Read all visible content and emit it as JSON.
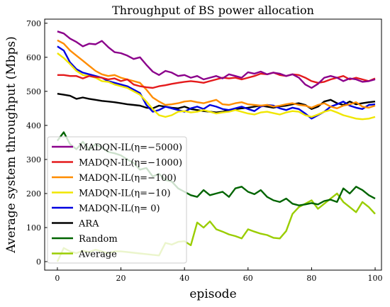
{
  "chart_data": {
    "type": "line",
    "title": "Throughput of BS power allocation",
    "xlabel": "episode",
    "ylabel": "Average system throughput (Mbps)",
    "xlim": [
      -4,
      102
    ],
    "ylim": [
      -25,
      712
    ],
    "xticks": [
      0,
      20,
      40,
      60,
      80,
      100
    ],
    "yticks": [
      0,
      100,
      200,
      300,
      400,
      500,
      600,
      700
    ],
    "grid": false,
    "legend_position": "lower-left",
    "series": [
      {
        "name": "MADQN-IL(η=−5000)",
        "color": "#8b008b",
        "x": [
          0,
          2,
          4,
          6,
          8,
          10,
          12,
          14,
          16,
          18,
          20,
          22,
          24,
          26,
          28,
          30,
          32,
          34,
          36,
          38,
          40,
          42,
          44,
          46,
          48,
          50,
          52,
          54,
          56,
          58,
          60,
          62,
          64,
          66,
          68,
          70,
          72,
          74,
          76,
          78,
          80,
          82,
          84,
          86,
          88,
          90,
          92,
          94,
          96,
          98,
          100
        ],
        "y": [
          676,
          670,
          655,
          645,
          632,
          640,
          638,
          648,
          630,
          615,
          612,
          605,
          595,
          600,
          578,
          558,
          548,
          560,
          555,
          545,
          548,
          540,
          545,
          535,
          540,
          545,
          538,
          550,
          545,
          540,
          556,
          552,
          558,
          550,
          555,
          552,
          545,
          550,
          540,
          520,
          510,
          522,
          540,
          545,
          540,
          530,
          538,
          535,
          528,
          530,
          535
        ]
      },
      {
        "name": "MADQN-IL(η=−1000)",
        "color": "#e41a1c",
        "x": [
          0,
          2,
          4,
          6,
          8,
          10,
          12,
          14,
          16,
          18,
          20,
          22,
          24,
          26,
          28,
          30,
          32,
          34,
          36,
          38,
          40,
          42,
          44,
          46,
          48,
          50,
          52,
          54,
          56,
          58,
          60,
          62,
          64,
          66,
          68,
          70,
          72,
          74,
          76,
          78,
          80,
          82,
          84,
          86,
          88,
          90,
          92,
          94,
          96,
          98,
          100
        ],
        "y": [
          548,
          548,
          545,
          545,
          538,
          545,
          542,
          540,
          535,
          538,
          530,
          535,
          520,
          515,
          512,
          510,
          515,
          518,
          522,
          525,
          528,
          530,
          528,
          525,
          530,
          535,
          540,
          538,
          540,
          535,
          540,
          545,
          552,
          550,
          555,
          548,
          545,
          550,
          548,
          540,
          530,
          525,
          528,
          535,
          540,
          545,
          535,
          540,
          535,
          530,
          538
        ]
      },
      {
        "name": "MADQN-IL(η=−100)",
        "color": "#ff8c00",
        "x": [
          0,
          2,
          4,
          6,
          8,
          10,
          12,
          14,
          16,
          18,
          20,
          22,
          24,
          26,
          28,
          30,
          32,
          34,
          36,
          38,
          40,
          42,
          44,
          46,
          48,
          50,
          52,
          54,
          56,
          58,
          60,
          62,
          64,
          66,
          68,
          70,
          72,
          74,
          76,
          78,
          80,
          82,
          84,
          86,
          88,
          90,
          92,
          94,
          96,
          98,
          100
        ],
        "y": [
          650,
          640,
          620,
          605,
          590,
          575,
          560,
          550,
          545,
          548,
          540,
          535,
          530,
          525,
          505,
          482,
          470,
          460,
          462,
          465,
          470,
          472,
          468,
          465,
          470,
          475,
          462,
          460,
          465,
          468,
          462,
          460,
          458,
          460,
          455,
          458,
          462,
          465,
          460,
          458,
          452,
          460,
          465,
          455,
          450,
          458,
          462,
          468,
          455,
          452,
          458
        ]
      },
      {
        "name": "MADQN-IL(η=−10)",
        "color": "#f0e600",
        "x": [
          0,
          2,
          4,
          6,
          8,
          10,
          12,
          14,
          16,
          18,
          20,
          22,
          24,
          26,
          28,
          30,
          32,
          34,
          36,
          38,
          40,
          42,
          44,
          46,
          48,
          50,
          52,
          54,
          56,
          58,
          60,
          62,
          64,
          66,
          68,
          70,
          72,
          74,
          76,
          78,
          80,
          82,
          84,
          86,
          88,
          90,
          92,
          94,
          96,
          98,
          100
        ],
        "y": [
          612,
          598,
          580,
          560,
          548,
          545,
          540,
          530,
          528,
          520,
          515,
          510,
          500,
          490,
          470,
          448,
          430,
          425,
          430,
          440,
          442,
          438,
          440,
          445,
          440,
          435,
          438,
          440,
          445,
          440,
          435,
          432,
          438,
          440,
          436,
          432,
          438,
          442,
          440,
          430,
          425,
          432,
          440,
          445,
          438,
          430,
          425,
          420,
          418,
          420,
          425
        ]
      },
      {
        "name": "MADQN-IL(η= 0)",
        "color": "#0000e0",
        "x": [
          0,
          2,
          4,
          6,
          8,
          10,
          12,
          14,
          16,
          18,
          20,
          22,
          24,
          26,
          28,
          30,
          32,
          34,
          36,
          38,
          40,
          42,
          44,
          46,
          48,
          50,
          52,
          54,
          56,
          58,
          60,
          62,
          64,
          66,
          68,
          70,
          72,
          74,
          76,
          78,
          80,
          82,
          84,
          86,
          88,
          90,
          92,
          94,
          96,
          98,
          100
        ],
        "y": [
          632,
          620,
          585,
          565,
          555,
          550,
          545,
          540,
          530,
          525,
          520,
          515,
          505,
          495,
          460,
          440,
          445,
          455,
          450,
          445,
          440,
          450,
          455,
          448,
          460,
          455,
          448,
          445,
          450,
          455,
          448,
          442,
          455,
          460,
          458,
          450,
          445,
          452,
          448,
          435,
          420,
          430,
          440,
          455,
          462,
          470,
          458,
          452,
          448,
          460,
          462
        ]
      },
      {
        "name": "ARA",
        "color": "#000000",
        "x": [
          0,
          2,
          4,
          6,
          8,
          10,
          12,
          14,
          16,
          18,
          20,
          22,
          24,
          26,
          28,
          30,
          32,
          34,
          36,
          38,
          40,
          42,
          44,
          46,
          48,
          50,
          52,
          54,
          56,
          58,
          60,
          62,
          64,
          66,
          68,
          70,
          72,
          74,
          76,
          78,
          80,
          82,
          84,
          86,
          88,
          90,
          92,
          94,
          96,
          98,
          100
        ],
        "y": [
          493,
          490,
          487,
          478,
          482,
          478,
          475,
          472,
          470,
          468,
          465,
          462,
          460,
          458,
          452,
          450,
          458,
          455,
          452,
          450,
          455,
          448,
          445,
          442,
          440,
          438,
          440,
          445,
          448,
          450,
          452,
          455,
          458,
          455,
          452,
          456,
          458,
          462,
          465,
          460,
          448,
          455,
          470,
          475,
          465,
          460,
          470,
          462,
          465,
          468,
          470
        ]
      },
      {
        "name": "Random",
        "color": "#006400",
        "x": [
          0,
          2,
          4,
          6,
          8,
          10,
          12,
          14,
          16,
          18,
          20,
          22,
          24,
          26,
          28,
          30,
          32,
          34,
          36,
          38,
          40,
          42,
          44,
          46,
          48,
          50,
          52,
          54,
          56,
          58,
          60,
          62,
          64,
          66,
          68,
          70,
          72,
          74,
          76,
          78,
          80,
          82,
          84,
          86,
          88,
          90,
          92,
          94,
          96,
          98,
          100
        ],
        "y": [
          355,
          380,
          345,
          330,
          352,
          328,
          345,
          335,
          322,
          318,
          312,
          300,
          290,
          270,
          275,
          250,
          258,
          240,
          235,
          215,
          205,
          195,
          190,
          210,
          195,
          200,
          205,
          190,
          215,
          220,
          205,
          198,
          210,
          190,
          180,
          175,
          185,
          170,
          165,
          168,
          172,
          168,
          178,
          182,
          175,
          215,
          200,
          220,
          210,
          195,
          185
        ]
      },
      {
        "name": "Average",
        "color": "#9acd00",
        "x": [
          0,
          2,
          4,
          6,
          8,
          10,
          12,
          14,
          16,
          18,
          20,
          22,
          24,
          26,
          28,
          30,
          32,
          34,
          36,
          38,
          40,
          42,
          44,
          46,
          48,
          50,
          52,
          54,
          56,
          58,
          60,
          62,
          64,
          66,
          68,
          70,
          72,
          74,
          76,
          78,
          80,
          82,
          84,
          86,
          88,
          90,
          92,
          94,
          96,
          98,
          100
        ],
        "y": [
          0,
          40,
          30,
          25,
          32,
          28,
          35,
          30,
          25,
          30,
          30,
          28,
          26,
          24,
          22,
          20,
          18,
          55,
          50,
          58,
          60,
          48,
          115,
          100,
          118,
          95,
          88,
          80,
          75,
          68,
          95,
          88,
          82,
          78,
          70,
          68,
          90,
          140,
          160,
          170,
          180,
          155,
          170,
          185,
          200,
          175,
          160,
          145,
          175,
          160,
          140
        ]
      }
    ]
  }
}
